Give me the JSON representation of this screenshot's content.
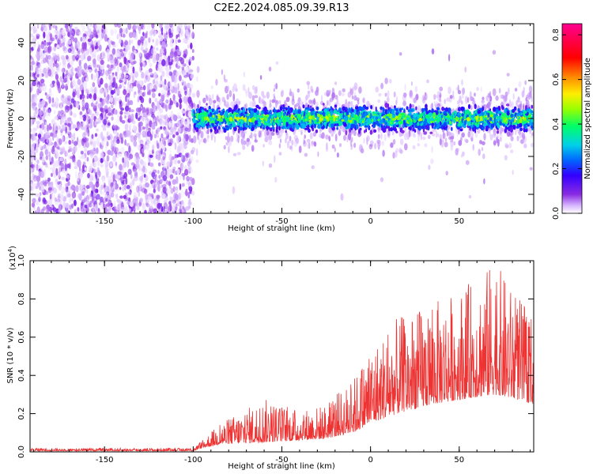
{
  "figure_title": "C2E2.2024.085.09.39.R13",
  "chart_data": [
    {
      "type": "heatmap",
      "title": "",
      "xlabel": "Height of straight line (km)",
      "ylabel": "Frequency (Hz)",
      "xlim": [
        -192,
        92
      ],
      "ylim": [
        -50,
        50
      ],
      "xticks": [
        -150,
        -100,
        -50,
        0,
        50
      ],
      "yticks": [
        -40,
        -20,
        0,
        20,
        40
      ],
      "colorbar": {
        "label": "Normalized spectral amplitude",
        "range": [
          0,
          0.85
        ],
        "ticks": [
          "0.0",
          "0.2",
          "0.4",
          "0.6",
          "0.8"
        ],
        "colormap": [
          "#ffffff",
          "#8a2be2",
          "#3300ff",
          "#0066ff",
          "#00e5e5",
          "#00ff66",
          "#99ff00",
          "#ffee00",
          "#ff8800",
          "#ff0000",
          "#ff0090"
        ]
      },
      "regions": [
        {
          "x_range": [
            -192,
            -100
          ],
          "description_values": {
            "freq_range": [
              -50,
              50
            ],
            "typical_amplitude": 0.05,
            "peak_amplitude": 0.1
          }
        },
        {
          "x_range": [
            -100,
            92
          ],
          "description_values": {
            "center_freq": 0,
            "band_halfwidth_hz": 4,
            "core_amplitude": 0.35,
            "peak_amplitude": 0.5
          }
        }
      ]
    },
    {
      "type": "line",
      "title": "",
      "xlabel": "Height of straight line (km)",
      "ylabel": "SNR (10 * v/v)",
      "multiplier_label": "(x10",
      "multiplier_exp": "4",
      "multiplier_close": ")",
      "xlim": [
        -192,
        92
      ],
      "ylim": [
        0,
        1.0
      ],
      "xticks": [
        -150,
        -100,
        -50,
        0,
        50
      ],
      "yticks": [
        "0.0",
        "0.2",
        "0.4",
        "0.6",
        "0.8",
        "1.0"
      ],
      "series": [
        {
          "color": "#ee3333",
          "envelope": [
            {
              "x": -192,
              "base": 0.005,
              "peak": 0.02
            },
            {
              "x": -100,
              "base": 0.005,
              "peak": 0.02
            },
            {
              "x": -95,
              "base": 0.02,
              "peak": 0.06
            },
            {
              "x": -85,
              "base": 0.04,
              "peak": 0.15
            },
            {
              "x": -60,
              "base": 0.05,
              "peak": 0.28
            },
            {
              "x": -40,
              "base": 0.06,
              "peak": 0.22
            },
            {
              "x": -25,
              "base": 0.07,
              "peak": 0.25
            },
            {
              "x": -10,
              "base": 0.1,
              "peak": 0.38
            },
            {
              "x": 0,
              "base": 0.15,
              "peak": 0.55
            },
            {
              "x": 15,
              "base": 0.2,
              "peak": 0.7
            },
            {
              "x": 35,
              "base": 0.25,
              "peak": 0.78
            },
            {
              "x": 55,
              "base": 0.28,
              "peak": 0.88
            },
            {
              "x": 70,
              "base": 0.3,
              "peak": 1.0
            },
            {
              "x": 80,
              "base": 0.28,
              "peak": 0.85
            },
            {
              "x": 92,
              "base": 0.25,
              "peak": 0.72
            }
          ]
        }
      ]
    }
  ]
}
